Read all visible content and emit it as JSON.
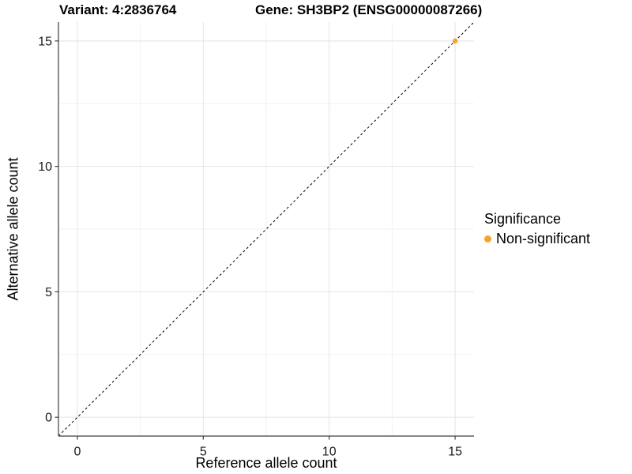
{
  "window": {
    "background": "#FFFFFF"
  },
  "chart_data": {
    "type": "scatter",
    "titles": {
      "left": "Variant: 4:2836764",
      "right": "Gene: SH3BP2 (ENSG00000087266)"
    },
    "xlabel": "Reference allele count",
    "ylabel": "Alternative allele count",
    "xlim": [
      -0.75,
      15.75
    ],
    "ylim": [
      -0.75,
      15.75
    ],
    "x_ticks": [
      0,
      5,
      10,
      15
    ],
    "y_ticks": [
      0,
      5,
      10,
      15
    ],
    "x_minor_ticks": [
      2.5,
      7.5,
      12.5
    ],
    "y_minor_ticks": [
      2.5,
      7.5,
      12.5
    ],
    "grid": "major+minor",
    "reference_line": {
      "kind": "y=x",
      "style": "dashed",
      "color": "#000000"
    },
    "series": [
      {
        "name": "Non-significant",
        "color": "#F8A229",
        "points": [
          [
            15,
            15
          ]
        ]
      }
    ],
    "legend": {
      "title": "Significance",
      "position": "right",
      "items": [
        {
          "label": "Non-significant",
          "color": "#F8A229"
        }
      ]
    }
  },
  "style": {
    "grid_major_color": "#E4E4E4",
    "grid_minor_color": "#F2F2F2",
    "axis_line_color": "#3F3F3F",
    "tick_label_color": "#1A1A1A",
    "point_radius": 3.2
  }
}
